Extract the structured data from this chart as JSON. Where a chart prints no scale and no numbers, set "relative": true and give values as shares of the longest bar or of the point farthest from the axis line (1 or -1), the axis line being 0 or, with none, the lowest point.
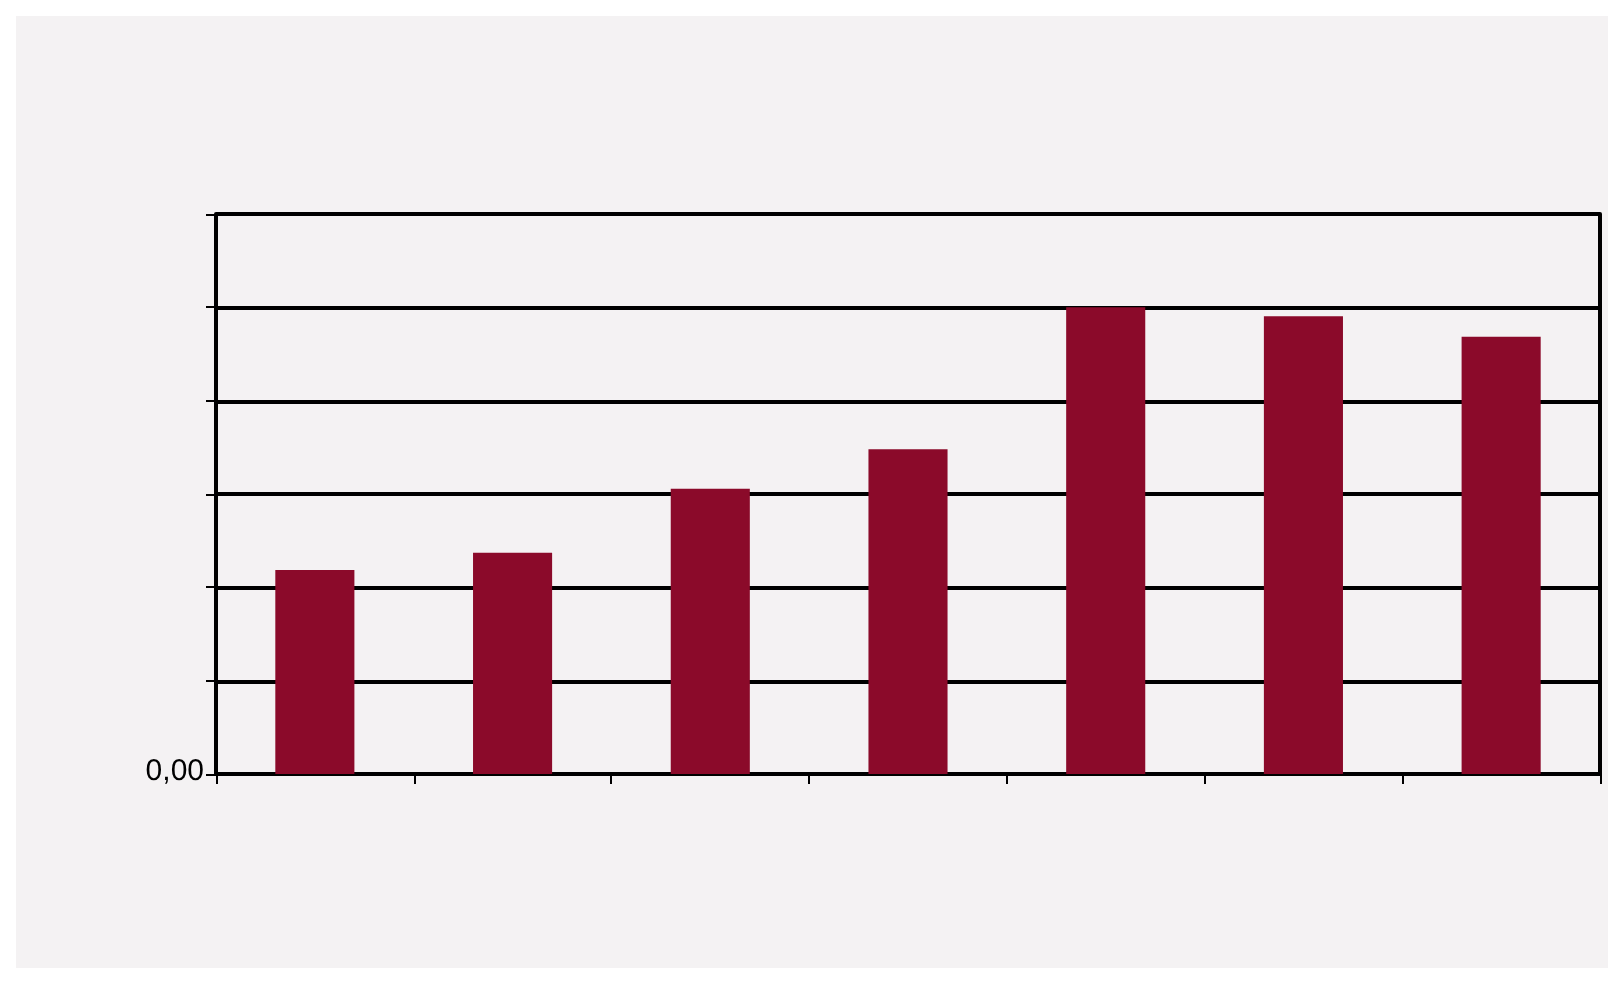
{
  "chart_data": {
    "type": "bar",
    "relative": true,
    "categories": [
      null,
      null,
      null,
      null,
      null,
      null,
      null
    ],
    "values": [
      0.437,
      0.474,
      0.611,
      0.696,
      1,
      0.981,
      0.937
    ],
    "color": "#8b0a2a",
    "grid": "y",
    "annotations": [
      "0,00"
    ]
  }
}
